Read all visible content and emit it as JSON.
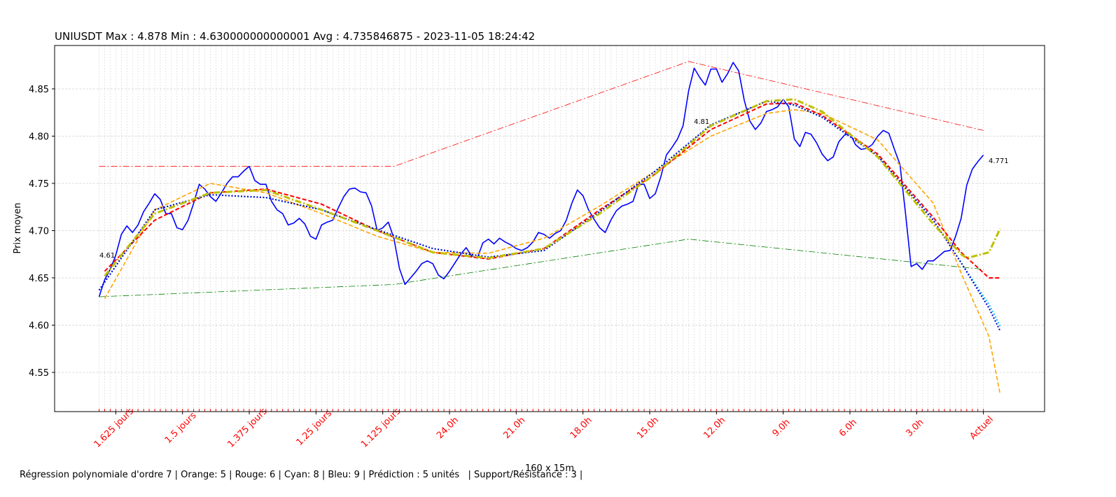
{
  "chart_data": {
    "type": "line",
    "title": "UNIUSDT Max : 4.878 Min : 4.630000000000001 Avg : 4.735846875 - 2023-11-05 18:24:42",
    "ylabel": "Prix moyen",
    "xlabel": "160 x 15m",
    "footer": "Régression polynomiale d'ordre 7 | Orange: 5 | Rouge: 6 | Cyan: 8 | Bleu: 9 | Prédiction : 5 unités   | Support/Résistance : 3 |",
    "annotations": [
      "4.61",
      "4.81",
      "4.771"
    ],
    "xlim": [
      -8,
      170
    ],
    "ylim": [
      4.5085,
      4.8959
    ],
    "grid": true,
    "yticks": [
      4.55,
      {
        "value": 4.6,
        "label": "4.60"
      },
      4.65,
      {
        "value": 4.7,
        "label": "4.70"
      },
      4.75,
      {
        "value": 4.8,
        "label": "4.80"
      },
      4.85
    ],
    "xticks": [
      {
        "value": 3,
        "label": "1.625 jours"
      },
      {
        "value": 15,
        "label": "1.5 jours"
      },
      {
        "value": 27,
        "label": "1.375 jours"
      },
      {
        "value": 39,
        "label": "1.25 jours"
      },
      {
        "value": 51,
        "label": "1.125 jours"
      },
      {
        "value": 63,
        "label": "24.0h"
      },
      {
        "value": 75,
        "label": "21.0h"
      },
      {
        "value": 87,
        "label": "18.0h"
      },
      {
        "value": 99,
        "label": "15.0h"
      },
      {
        "value": 111,
        "label": "12.0h"
      },
      {
        "value": 123,
        "label": "9.0h"
      },
      {
        "value": 135,
        "label": "6.0h"
      },
      {
        "value": 147,
        "label": "3.0h"
      },
      {
        "value": 159,
        "label": "Actuel"
      }
    ],
    "xtick_color": "#ff0000",
    "x": [
      0,
      1,
      2,
      3,
      4,
      5,
      6,
      7,
      8,
      9,
      10,
      11,
      12,
      13,
      14,
      15,
      16,
      17,
      18,
      19,
      20,
      21,
      22,
      23,
      24,
      25,
      26,
      27,
      28,
      29,
      30,
      31,
      32,
      33,
      34,
      35,
      36,
      37,
      38,
      39,
      40,
      41,
      42,
      43,
      44,
      45,
      46,
      47,
      48,
      49,
      50,
      51,
      52,
      53,
      54,
      55,
      56,
      57,
      58,
      59,
      60,
      61,
      62,
      63,
      64,
      65,
      66,
      67,
      68,
      69,
      70,
      71,
      72,
      73,
      74,
      75,
      76,
      77,
      78,
      79,
      80,
      81,
      82,
      83,
      84,
      85,
      86,
      87,
      88,
      89,
      90,
      91,
      92,
      93,
      94,
      95,
      96,
      97,
      98,
      99,
      100,
      101,
      102,
      103,
      104,
      105,
      106,
      107,
      108,
      109,
      110,
      111,
      112,
      113,
      114,
      115,
      116,
      117,
      118,
      119,
      120,
      121,
      122,
      123,
      124,
      125,
      126,
      127,
      128,
      129,
      130,
      131,
      132,
      133,
      134,
      135,
      136,
      137,
      138,
      139,
      140,
      141,
      142,
      143,
      144,
      145,
      146,
      147,
      148,
      149,
      150,
      151,
      152,
      153,
      154,
      155,
      156,
      157,
      158,
      159
    ],
    "series": [
      {
        "color": "#0000ff",
        "style": "solid",
        "width": 1.6,
        "values": [
          4.63,
          4.648,
          4.659,
          4.674,
          4.696,
          4.705,
          4.698,
          4.706,
          4.72,
          4.729,
          4.739,
          4.733,
          4.718,
          4.718,
          4.703,
          4.701,
          4.711,
          4.729,
          4.749,
          4.744,
          4.736,
          4.731,
          4.74,
          4.75,
          4.757,
          4.757,
          4.763,
          4.768,
          4.753,
          4.749,
          4.749,
          4.731,
          4.722,
          4.718,
          4.706,
          4.708,
          4.713,
          4.707,
          4.694,
          4.691,
          4.706,
          4.709,
          4.711,
          4.724,
          4.736,
          4.744,
          4.745,
          4.741,
          4.74,
          4.726,
          4.7,
          4.703,
          4.709,
          4.692,
          4.66,
          4.643,
          4.65,
          4.657,
          4.665,
          4.668,
          4.665,
          4.653,
          4.649,
          4.657,
          4.666,
          4.675,
          4.682,
          4.673,
          4.671,
          4.687,
          4.691,
          4.686,
          4.692,
          4.688,
          4.685,
          4.681,
          4.679,
          4.682,
          4.688,
          4.698,
          4.696,
          4.692,
          4.697,
          4.7,
          4.711,
          4.729,
          4.743,
          4.737,
          4.722,
          4.712,
          4.703,
          4.698,
          4.711,
          4.721,
          4.726,
          4.728,
          4.731,
          4.749,
          4.749,
          4.734,
          4.739,
          4.757,
          4.78,
          4.788,
          4.797,
          4.811,
          4.848,
          4.872,
          4.862,
          4.854,
          4.871,
          4.871,
          4.857,
          4.866,
          4.878,
          4.869,
          4.838,
          4.816,
          4.807,
          4.814,
          4.826,
          4.828,
          4.831,
          4.839,
          4.831,
          4.797,
          4.789,
          4.804,
          4.802,
          4.793,
          4.781,
          4.774,
          4.778,
          4.794,
          4.801,
          4.803,
          4.791,
          4.786,
          4.787,
          4.791,
          4.8,
          4.806,
          4.803,
          4.786,
          4.77,
          4.718,
          4.662,
          4.665,
          4.659,
          4.668,
          4.668,
          4.673,
          4.678,
          4.679,
          4.694,
          4.713,
          4.748,
          4.765,
          4.773,
          4.78
        ]
      },
      {
        "color": "#ff0000",
        "style": "solid",
        "width": 0.8,
        "dash": "dashdot",
        "x": [
          0,
          53,
          106,
          159
        ],
        "values": [
          4.768,
          4.768,
          4.879,
          4.806
        ]
      },
      {
        "color": "#008000",
        "style": "solid",
        "width": 0.8,
        "dash": "dashdot",
        "x": [
          0,
          53,
          106,
          159
        ],
        "values": [
          4.63,
          4.643,
          4.691,
          4.659
        ]
      },
      {
        "color": "#ffa500",
        "style": "dashed",
        "width": 1.6,
        "x": [
          1,
          10,
          20,
          30,
          40,
          50,
          60,
          70,
          80,
          90,
          100,
          110,
          120,
          125,
          130,
          140,
          150,
          155,
          160,
          162
        ],
        "values": [
          4.628,
          4.722,
          4.75,
          4.74,
          4.718,
          4.694,
          4.677,
          4.676,
          4.692,
          4.726,
          4.763,
          4.8,
          4.824,
          4.828,
          4.824,
          4.796,
          4.729,
          4.655,
          4.588,
          4.527
        ]
      },
      {
        "color": "#ff0000",
        "style": "dashed",
        "width": 2,
        "x": [
          1,
          10,
          20,
          30,
          40,
          50,
          60,
          70,
          80,
          90,
          100,
          110,
          120,
          125,
          130,
          140,
          150,
          155,
          160,
          162
        ],
        "values": [
          4.657,
          4.711,
          4.74,
          4.744,
          4.728,
          4.7,
          4.677,
          4.67,
          4.681,
          4.722,
          4.76,
          4.807,
          4.834,
          4.835,
          4.822,
          4.781,
          4.714,
          4.677,
          4.65,
          4.65
        ]
      },
      {
        "color": "#00bfff",
        "style": "dotted",
        "width": 2,
        "x": [
          0,
          10,
          20,
          30,
          40,
          50,
          60,
          70,
          80,
          90,
          100,
          110,
          120,
          125,
          130,
          140,
          150,
          155,
          160,
          162
        ],
        "values": [
          4.637,
          4.722,
          4.738,
          4.735,
          4.722,
          4.701,
          4.681,
          4.672,
          4.679,
          4.72,
          4.763,
          4.812,
          4.837,
          4.833,
          4.82,
          4.779,
          4.711,
          4.666,
          4.622,
          4.599
        ]
      },
      {
        "color": "#0000cc",
        "style": "dotted",
        "width": 2,
        "x": [
          0,
          10,
          20,
          30,
          40,
          50,
          60,
          70,
          80,
          90,
          100,
          110,
          120,
          125,
          130,
          140,
          150,
          155,
          160,
          162
        ],
        "values": [
          4.637,
          4.722,
          4.738,
          4.735,
          4.722,
          4.701,
          4.681,
          4.672,
          4.679,
          4.72,
          4.763,
          4.812,
          4.837,
          4.833,
          4.82,
          4.779,
          4.711,
          4.666,
          4.618,
          4.594
        ]
      },
      {
        "color": "#bfbf00",
        "style": "dashdot",
        "width": 3,
        "x": [
          1,
          10,
          20,
          30,
          40,
          50,
          60,
          70,
          80,
          90,
          100,
          110,
          120,
          125,
          130,
          140,
          150,
          155,
          156,
          160,
          162
        ],
        "values": [
          4.652,
          4.718,
          4.74,
          4.743,
          4.722,
          4.7,
          4.677,
          4.671,
          4.681,
          4.718,
          4.76,
          4.811,
          4.837,
          4.839,
          4.826,
          4.778,
          4.707,
          4.675,
          4.671,
          4.677,
          4.702
        ]
      }
    ]
  }
}
